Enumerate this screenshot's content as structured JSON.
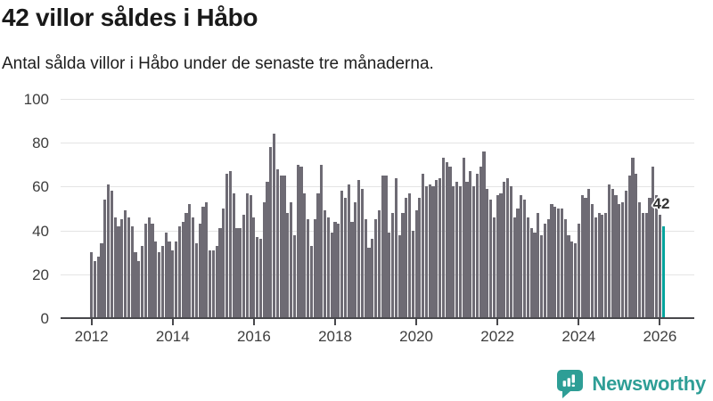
{
  "header": {
    "title": "42 villor såldes i Håbo",
    "subtitle": "Antal sålda villor i Håbo under de senaste tre månaderna."
  },
  "chart_data": {
    "type": "bar",
    "title": "42 villor såldes i Håbo",
    "xlabel": "",
    "ylabel": "",
    "x_unit": "month",
    "x_start": "2012-01",
    "x_end": "2026-02",
    "x_tick_labels": [
      "2012",
      "2014",
      "2016",
      "2018",
      "2020",
      "2022",
      "2024",
      "2026"
    ],
    "y_tick_labels": [
      "0",
      "20",
      "40",
      "60",
      "80",
      "100"
    ],
    "ylim": [
      0,
      100
    ],
    "grid": "horizontal-only",
    "legend": "none",
    "values": [
      30,
      26,
      28,
      34,
      54,
      61,
      58,
      46,
      42,
      45,
      49,
      46,
      42,
      30,
      26,
      33,
      43,
      46,
      43,
      35,
      30,
      33,
      39,
      35,
      31,
      35,
      42,
      44,
      48,
      52,
      46,
      34,
      43,
      51,
      53,
      31,
      31,
      33,
      41,
      50,
      66,
      67,
      57,
      41,
      41,
      47,
      57,
      56,
      46,
      37,
      36,
      53,
      62,
      78,
      84,
      68,
      65,
      65,
      48,
      53,
      38,
      70,
      69,
      57,
      45,
      33,
      45,
      57,
      70,
      49,
      46,
      39,
      44,
      43,
      58,
      55,
      61,
      44,
      53,
      63,
      59,
      45,
      32,
      36,
      45,
      49,
      65,
      65,
      39,
      48,
      64,
      38,
      48,
      55,
      57,
      40,
      49,
      55,
      66,
      60,
      61,
      60,
      63,
      64,
      73,
      71,
      69,
      60,
      62,
      60,
      73,
      62,
      67,
      60,
      66,
      69,
      76,
      59,
      54,
      46,
      56,
      57,
      62,
      64,
      60,
      46,
      50,
      56,
      54,
      46,
      41,
      39,
      48,
      38,
      43,
      45,
      52,
      51,
      50,
      50,
      45,
      38,
      35,
      34,
      43,
      56,
      55,
      59,
      52,
      46,
      48,
      47,
      48,
      61,
      59,
      56,
      52,
      53,
      58,
      65,
      73,
      66,
      53,
      48,
      48,
      55,
      69,
      56,
      47,
      42
    ],
    "highlight": {
      "index": 169,
      "value": 42,
      "label": "42"
    },
    "colors": {
      "bar": "#6e6b74",
      "highlight": "#00a39c",
      "gridline": "#e4e4e4",
      "axis": "#48484c",
      "tick_labels": "#3d3d3d"
    }
  },
  "annotation": {
    "value_label": "42"
  },
  "branding": {
    "name": "Newsworthy",
    "color": "#2e9e96",
    "icon": "newsworthy-speech-bubble-chart-icon"
  }
}
